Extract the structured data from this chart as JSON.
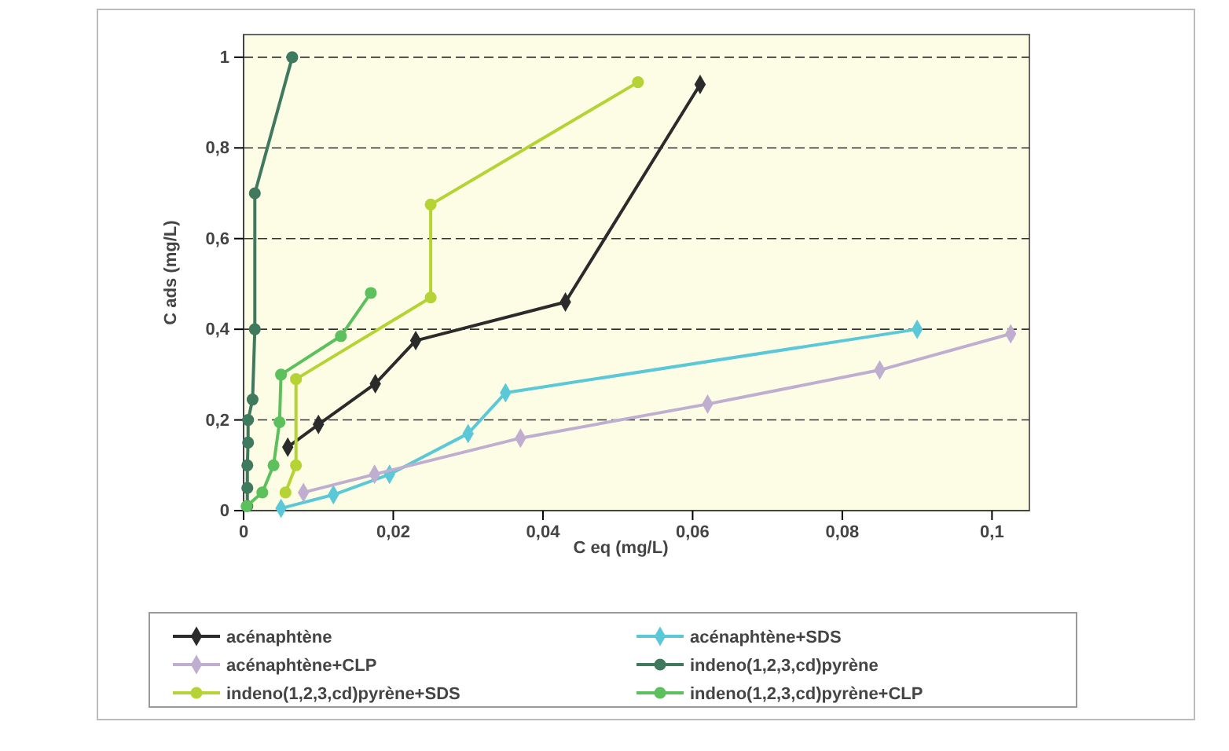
{
  "chart_data": {
    "type": "line",
    "xlabel": "C eq (mg/L)",
    "ylabel": "C ads (mg/L)",
    "xlim": [
      0,
      0.105
    ],
    "ylim": [
      0,
      1.05
    ],
    "xticks": [
      {
        "value": 0,
        "label": "0"
      },
      {
        "value": 0.02,
        "label": "0,02"
      },
      {
        "value": 0.04,
        "label": "0,04"
      },
      {
        "value": 0.06,
        "label": "0,06"
      },
      {
        "value": 0.08,
        "label": "0,08"
      },
      {
        "value": 0.1,
        "label": "0,1"
      }
    ],
    "yticks": [
      {
        "value": 0,
        "label": "0"
      },
      {
        "value": 0.2,
        "label": "0,2"
      },
      {
        "value": 0.4,
        "label": "0,4"
      },
      {
        "value": 0.6,
        "label": "0,6"
      },
      {
        "value": 0.8,
        "label": "0,8"
      },
      {
        "value": 1,
        "label": "1"
      }
    ],
    "grid": "y",
    "legend": "bottom",
    "series": [
      {
        "name": "acénaphtène",
        "color": "#2b2b2b",
        "marker": "diamond",
        "x": [
          0.0059,
          0.01,
          0.0176,
          0.023,
          0.043,
          0.061
        ],
        "values": [
          0.14,
          0.19,
          0.28,
          0.375,
          0.46,
          0.94
        ]
      },
      {
        "name": "acénaphtène+SDS",
        "color": "#5bc8d8",
        "marker": "diamond",
        "x": [
          0.005,
          0.012,
          0.0195,
          0.03,
          0.035,
          0.09
        ],
        "values": [
          0.005,
          0.035,
          0.08,
          0.17,
          0.26,
          0.4
        ]
      },
      {
        "name": "acénaphtène+CLP",
        "color": "#c0aed0",
        "marker": "diamond",
        "x": [
          0.008,
          0.0175,
          0.037,
          0.062,
          0.085,
          0.1025
        ],
        "values": [
          0.04,
          0.08,
          0.16,
          0.235,
          0.31,
          0.39
        ]
      },
      {
        "name": "indeno(1,2,3,cd)pyrène",
        "color": "#3f7a5e",
        "marker": "circle",
        "x": [
          0.0005,
          0.0005,
          0.0005,
          0.0006,
          0.0006,
          0.0012,
          0.0015,
          0.0015,
          0.0065
        ],
        "values": [
          0.01,
          0.05,
          0.1,
          0.15,
          0.2,
          0.245,
          0.4,
          0.7,
          1
        ]
      },
      {
        "name": "indeno(1,2,3,cd)pyrène+SDS",
        "color": "#b5d334",
        "marker": "circle",
        "x": [
          0.0056,
          0.007,
          0.007,
          0.025,
          0.025,
          0.0527
        ],
        "values": [
          0.04,
          0.1,
          0.29,
          0.47,
          0.675,
          0.945
        ]
      },
      {
        "name": "indeno(1,2,3,cd)pyrène+CLP",
        "color": "#5cc05c",
        "marker": "circle",
        "x": [
          0.0004,
          0.0025,
          0.004,
          0.0048,
          0.005,
          0.013,
          0.017
        ],
        "values": [
          0.01,
          0.04,
          0.1,
          0.195,
          0.3,
          0.385,
          0.48
        ]
      }
    ]
  }
}
